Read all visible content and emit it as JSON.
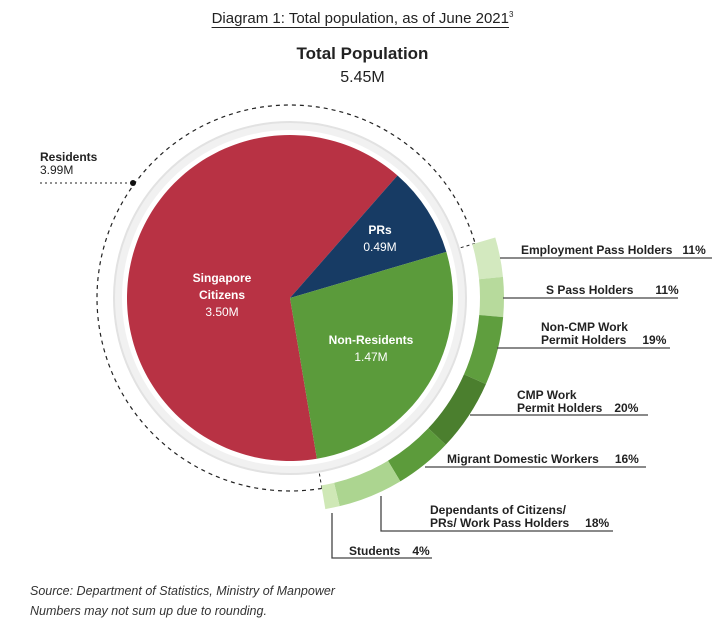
{
  "title": "Diagram 1: Total population, as of June 2021",
  "title_footnote": "3",
  "total": {
    "label": "Total Population",
    "value": "5.45M"
  },
  "residents": {
    "label": "Residents",
    "value": "3.99M"
  },
  "source": "Source: Department of Statistics, Ministry of Manpower",
  "note": "Numbers may not sum up due to rounding.",
  "chart_data": {
    "type": "pie",
    "title": "Total Population",
    "unit": "M",
    "inner_pie": [
      {
        "label": "Singapore Citizens",
        "line1": "Singapore",
        "line2": "Citizens",
        "value": 3.5,
        "display": "3.50M",
        "color": "#b83244"
      },
      {
        "label": "PRs",
        "value": 0.49,
        "display": "0.49M",
        "color": "#173b64"
      },
      {
        "label": "Non-Residents",
        "value": 1.47,
        "display": "1.47M",
        "color": "#5b9b3b"
      }
    ],
    "non_resident_breakdown": [
      {
        "label": "Employment Pass Holders",
        "value": 11,
        "display": "11%",
        "color": "#d3e9bf"
      },
      {
        "label": "S Pass Holders",
        "value": 11,
        "display": "11%",
        "color": "#b7da9c"
      },
      {
        "label": "Non-CMP Work Permit Holders",
        "line1": "Non-CMP Work",
        "line2": "Permit Holders",
        "value": 19,
        "display": "19%",
        "color": "#5f9e3e"
      },
      {
        "label": "CMP Work Permit Holders",
        "line1": "CMP Work",
        "line2": "Permit Holders",
        "value": 20,
        "display": "20%",
        "color": "#4b7f2e"
      },
      {
        "label": "Migrant Domestic Workers",
        "value": 16,
        "display": "16%",
        "color": "#5c9b3b"
      },
      {
        "label": "Dependants of Citizens/ PRs/ Work Pass Holders",
        "line1": "Dependants of Citizens/",
        "line2": "PRs/ Work Pass Holders",
        "value": 18,
        "display": "18%",
        "color": "#acd590"
      },
      {
        "label": "Students",
        "value": 4,
        "display": "4%",
        "color": "#cfe8b6"
      }
    ]
  }
}
